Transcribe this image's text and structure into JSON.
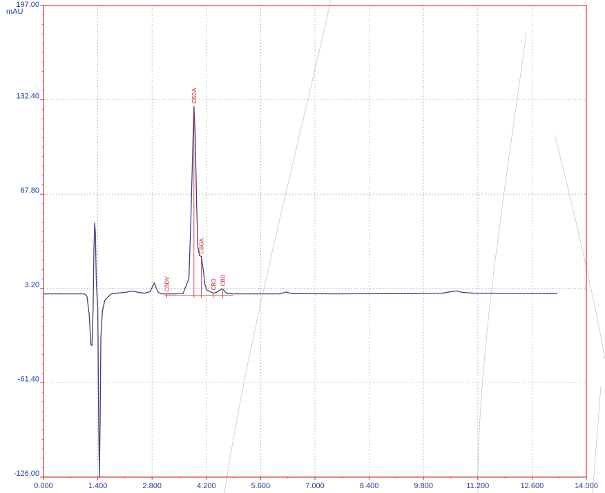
{
  "chart_data": {
    "type": "line",
    "title": "",
    "xlabel": "",
    "ylabel": "",
    "y_unit": "mAU",
    "xlim": [
      0,
      14
    ],
    "ylim": [
      -126,
      197
    ],
    "grid": true,
    "x_ticks": [
      "0.000",
      "1.400",
      "2.800",
      "4.200",
      "5.600",
      "7.000",
      "8.400",
      "9.800",
      "11.200",
      "12.600",
      "14.000"
    ],
    "y_ticks": [
      "197.00",
      "132.40",
      "67.80",
      "3.20",
      "-61.40",
      "-126.00"
    ],
    "series": [
      {
        "points": [
          [
            0.0,
            -0.5
          ],
          [
            1.05,
            -0.5
          ],
          [
            1.12,
            -2
          ],
          [
            1.18,
            -15
          ],
          [
            1.22,
            -35
          ],
          [
            1.25,
            -36
          ],
          [
            1.28,
            -10
          ],
          [
            1.3,
            30
          ],
          [
            1.32,
            48
          ],
          [
            1.34,
            40
          ],
          [
            1.36,
            10
          ],
          [
            1.38,
            -2
          ],
          [
            1.4,
            -10
          ],
          [
            1.42,
            -80
          ],
          [
            1.44,
            -126
          ],
          [
            1.46,
            -90
          ],
          [
            1.48,
            -30
          ],
          [
            1.52,
            -12
          ],
          [
            1.58,
            -5
          ],
          [
            1.65,
            -3
          ],
          [
            1.75,
            -0.5
          ],
          [
            1.9,
            0
          ],
          [
            2.1,
            0.5
          ],
          [
            2.3,
            1.5
          ],
          [
            2.45,
            0.5
          ],
          [
            2.6,
            0
          ],
          [
            2.75,
            1
          ],
          [
            2.82,
            5
          ],
          [
            2.86,
            7
          ],
          [
            2.9,
            4
          ],
          [
            2.96,
            0.5
          ],
          [
            3.05,
            -0.5
          ],
          [
            3.4,
            -0.5
          ],
          [
            3.6,
            -0.2
          ],
          [
            3.75,
            10
          ],
          [
            3.8,
            50
          ],
          [
            3.85,
            100
          ],
          [
            3.88,
            128
          ],
          [
            3.91,
            110
          ],
          [
            3.95,
            60
          ],
          [
            3.98,
            32
          ],
          [
            4.02,
            26
          ],
          [
            4.07,
            25
          ],
          [
            4.12,
            16
          ],
          [
            4.16,
            6
          ],
          [
            4.22,
            2
          ],
          [
            4.3,
            1
          ],
          [
            4.38,
            0
          ],
          [
            4.45,
            0.5
          ],
          [
            4.55,
            2
          ],
          [
            4.62,
            3
          ],
          [
            4.68,
            1
          ],
          [
            4.75,
            -0.3
          ],
          [
            4.9,
            -0.5
          ],
          [
            6.1,
            -0.5
          ],
          [
            6.25,
            0.8
          ],
          [
            6.4,
            -0.3
          ],
          [
            7.5,
            -0.5
          ],
          [
            9.5,
            -0.3
          ],
          [
            10.3,
            0
          ],
          [
            10.5,
            1
          ],
          [
            10.65,
            1.5
          ],
          [
            10.8,
            0.5
          ],
          [
            11.1,
            0
          ],
          [
            12.5,
            -0.2
          ],
          [
            13.25,
            -0.3
          ]
        ]
      }
    ],
    "peaks": [
      {
        "label": "CBDV",
        "rt": 3.18,
        "intensity": -1
      },
      {
        "label": "CBDA",
        "rt": 3.88,
        "intensity": 128
      },
      {
        "label": "CBGA",
        "rt": 4.07,
        "intensity": 25
      },
      {
        "label": "CBG",
        "rt": 4.38,
        "intensity": 0
      },
      {
        "label": "CBD",
        "rt": 4.62,
        "intensity": 3
      }
    ],
    "colors": {
      "trace": "#3c3f7a",
      "axis": "#e03030",
      "grid": "#9a9a9a",
      "tick_text": "#1a3aa8",
      "peak_label": "#d92020",
      "stray_lines": "#888888"
    }
  }
}
